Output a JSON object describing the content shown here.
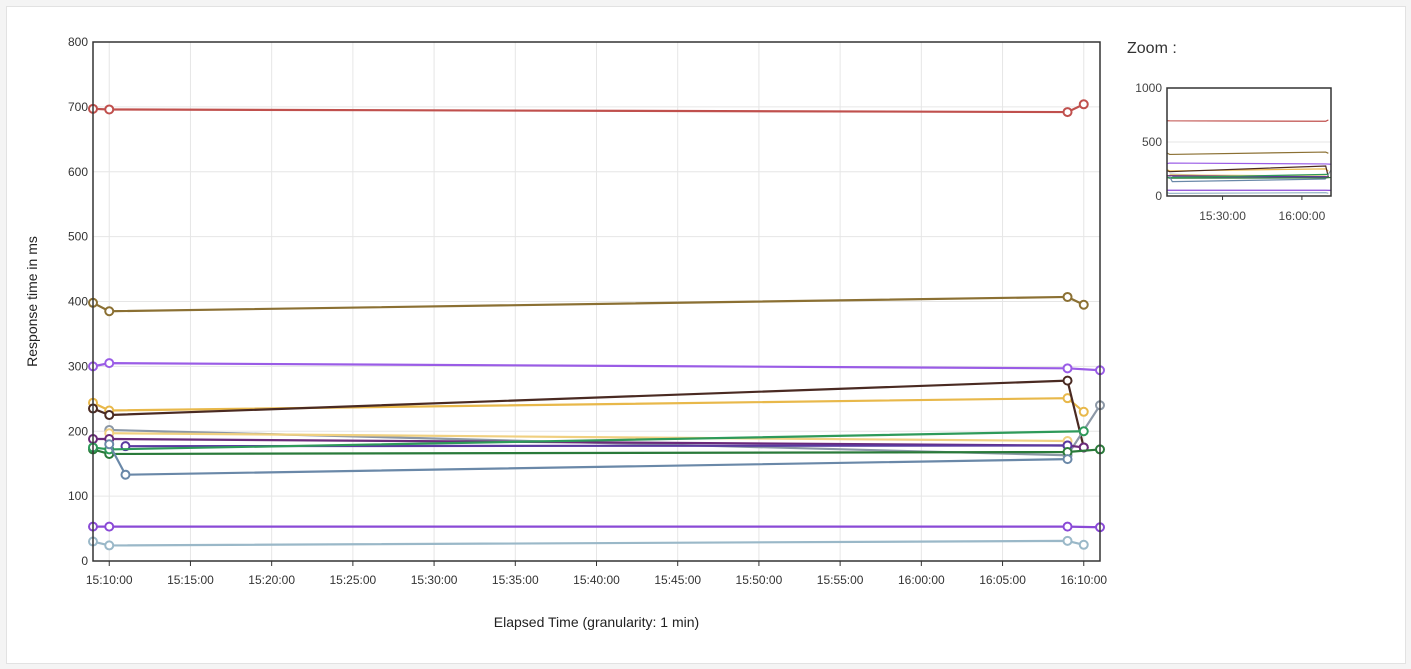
{
  "chart_data": {
    "type": "line",
    "xlabel": "Elapsed Time (granularity: 1 min)",
    "ylabel": "Response time in ms",
    "ylim": [
      0,
      800
    ],
    "yticks": [
      0,
      100,
      200,
      300,
      400,
      500,
      600,
      700,
      800
    ],
    "x_tick_labels": [
      "15:10:00",
      "15:15:00",
      "15:20:00",
      "15:25:00",
      "15:30:00",
      "15:35:00",
      "15:40:00",
      "15:45:00",
      "15:50:00",
      "15:55:00",
      "16:00:00",
      "16:05:00",
      "16:10:00"
    ],
    "x": [
      "15:09",
      "15:10",
      "15:11",
      "16:09",
      "16:10",
      "16:11"
    ],
    "grid": true,
    "legend": "none",
    "series": [
      {
        "color": "#c0504d",
        "values": [
          697,
          696,
          null,
          692,
          704,
          null
        ]
      },
      {
        "color": "#8b7033",
        "values": [
          398,
          385,
          null,
          407,
          395,
          null
        ]
      },
      {
        "color": "#9a5ce6",
        "values": [
          300,
          305,
          null,
          297,
          null,
          294
        ]
      },
      {
        "color": "#e8b84a",
        "values": [
          244,
          232,
          null,
          251,
          230,
          null
        ]
      },
      {
        "color": "#4a2a22",
        "values": [
          235,
          225,
          null,
          278,
          175,
          null
        ]
      },
      {
        "color": "#8c98a6",
        "values": [
          null,
          202,
          null,
          163,
          null,
          240
        ]
      },
      {
        "color": "#f0d080",
        "values": [
          null,
          197,
          null,
          185,
          null,
          null
        ]
      },
      {
        "color": "#6b2a7a",
        "values": [
          188,
          188,
          null,
          178,
          175,
          null
        ]
      },
      {
        "color": "#5a3aa0",
        "values": [
          null,
          null,
          177,
          178,
          null,
          null
        ]
      },
      {
        "color": "#2a7a3a",
        "values": [
          172,
          165,
          null,
          168,
          null,
          172
        ]
      },
      {
        "color": "#2e9a5a",
        "values": [
          175,
          172,
          null,
          null,
          200,
          null
        ]
      },
      {
        "color": "#6a88a8",
        "values": [
          null,
          180,
          133,
          157,
          null,
          null
        ]
      },
      {
        "color": "#8a4ad6",
        "values": [
          53,
          53,
          null,
          53,
          null,
          52
        ]
      },
      {
        "color": "#9ab8c8",
        "values": [
          30,
          24,
          null,
          31,
          25,
          null
        ]
      }
    ]
  },
  "zoom": {
    "title": "Zoom :",
    "ylim": [
      0,
      1000
    ],
    "yticks": [
      0,
      500,
      1000
    ],
    "x_tick_labels": [
      "15:30:00",
      "16:00:00"
    ]
  }
}
